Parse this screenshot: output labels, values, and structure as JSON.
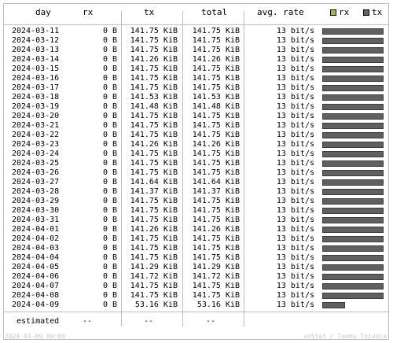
{
  "headers": {
    "day": "day",
    "rx": "rx",
    "tx": "tx",
    "total": "total",
    "rate": "avg. rate"
  },
  "legend": [
    {
      "label": "rx",
      "color": "#9cc61c"
    },
    {
      "label": "tx",
      "color": "#606060"
    }
  ],
  "rows": [
    {
      "day": "2024-03-11",
      "rx": "0 B",
      "tx": "141.75 KiB",
      "total": "141.75 KiB",
      "rate": "13 bit/s",
      "tx_frac": 1.0
    },
    {
      "day": "2024-03-12",
      "rx": "0 B",
      "tx": "141.75 KiB",
      "total": "141.75 KiB",
      "rate": "13 bit/s",
      "tx_frac": 1.0
    },
    {
      "day": "2024-03-13",
      "rx": "0 B",
      "tx": "141.75 KiB",
      "total": "141.75 KiB",
      "rate": "13 bit/s",
      "tx_frac": 1.0
    },
    {
      "day": "2024-03-14",
      "rx": "0 B",
      "tx": "141.26 KiB",
      "total": "141.26 KiB",
      "rate": "13 bit/s",
      "tx_frac": 0.997
    },
    {
      "day": "2024-03-15",
      "rx": "0 B",
      "tx": "141.75 KiB",
      "total": "141.75 KiB",
      "rate": "13 bit/s",
      "tx_frac": 1.0
    },
    {
      "day": "2024-03-16",
      "rx": "0 B",
      "tx": "141.75 KiB",
      "total": "141.75 KiB",
      "rate": "13 bit/s",
      "tx_frac": 1.0
    },
    {
      "day": "2024-03-17",
      "rx": "0 B",
      "tx": "141.75 KiB",
      "total": "141.75 KiB",
      "rate": "13 bit/s",
      "tx_frac": 1.0
    },
    {
      "day": "2024-03-18",
      "rx": "0 B",
      "tx": "141.53 KiB",
      "total": "141.53 KiB",
      "rate": "13 bit/s",
      "tx_frac": 0.998
    },
    {
      "day": "2024-03-19",
      "rx": "0 B",
      "tx": "141.48 KiB",
      "total": "141.48 KiB",
      "rate": "13 bit/s",
      "tx_frac": 0.998
    },
    {
      "day": "2024-03-20",
      "rx": "0 B",
      "tx": "141.75 KiB",
      "total": "141.75 KiB",
      "rate": "13 bit/s",
      "tx_frac": 1.0
    },
    {
      "day": "2024-03-21",
      "rx": "0 B",
      "tx": "141.75 KiB",
      "total": "141.75 KiB",
      "rate": "13 bit/s",
      "tx_frac": 1.0
    },
    {
      "day": "2024-03-22",
      "rx": "0 B",
      "tx": "141.75 KiB",
      "total": "141.75 KiB",
      "rate": "13 bit/s",
      "tx_frac": 1.0
    },
    {
      "day": "2024-03-23",
      "rx": "0 B",
      "tx": "141.26 KiB",
      "total": "141.26 KiB",
      "rate": "13 bit/s",
      "tx_frac": 0.997
    },
    {
      "day": "2024-03-24",
      "rx": "0 B",
      "tx": "141.75 KiB",
      "total": "141.75 KiB",
      "rate": "13 bit/s",
      "tx_frac": 1.0
    },
    {
      "day": "2024-03-25",
      "rx": "0 B",
      "tx": "141.75 KiB",
      "total": "141.75 KiB",
      "rate": "13 bit/s",
      "tx_frac": 1.0
    },
    {
      "day": "2024-03-26",
      "rx": "0 B",
      "tx": "141.75 KiB",
      "total": "141.75 KiB",
      "rate": "13 bit/s",
      "tx_frac": 1.0
    },
    {
      "day": "2024-03-27",
      "rx": "0 B",
      "tx": "141.64 KiB",
      "total": "141.64 KiB",
      "rate": "13 bit/s",
      "tx_frac": 0.999
    },
    {
      "day": "2024-03-28",
      "rx": "0 B",
      "tx": "141.37 KiB",
      "total": "141.37 KiB",
      "rate": "13 bit/s",
      "tx_frac": 0.997
    },
    {
      "day": "2024-03-29",
      "rx": "0 B",
      "tx": "141.75 KiB",
      "total": "141.75 KiB",
      "rate": "13 bit/s",
      "tx_frac": 1.0
    },
    {
      "day": "2024-03-30",
      "rx": "0 B",
      "tx": "141.75 KiB",
      "total": "141.75 KiB",
      "rate": "13 bit/s",
      "tx_frac": 1.0
    },
    {
      "day": "2024-03-31",
      "rx": "0 B",
      "tx": "141.75 KiB",
      "total": "141.75 KiB",
      "rate": "13 bit/s",
      "tx_frac": 1.0
    },
    {
      "day": "2024-04-01",
      "rx": "0 B",
      "tx": "141.26 KiB",
      "total": "141.26 KiB",
      "rate": "13 bit/s",
      "tx_frac": 0.997
    },
    {
      "day": "2024-04-02",
      "rx": "0 B",
      "tx": "141.75 KiB",
      "total": "141.75 KiB",
      "rate": "13 bit/s",
      "tx_frac": 1.0
    },
    {
      "day": "2024-04-03",
      "rx": "0 B",
      "tx": "141.75 KiB",
      "total": "141.75 KiB",
      "rate": "13 bit/s",
      "tx_frac": 1.0
    },
    {
      "day": "2024-04-04",
      "rx": "0 B",
      "tx": "141.75 KiB",
      "total": "141.75 KiB",
      "rate": "13 bit/s",
      "tx_frac": 1.0
    },
    {
      "day": "2024-04-05",
      "rx": "0 B",
      "tx": "141.29 KiB",
      "total": "141.29 KiB",
      "rate": "13 bit/s",
      "tx_frac": 0.997
    },
    {
      "day": "2024-04-06",
      "rx": "0 B",
      "tx": "141.72 KiB",
      "total": "141.72 KiB",
      "rate": "13 bit/s",
      "tx_frac": 1.0
    },
    {
      "day": "2024-04-07",
      "rx": "0 B",
      "tx": "141.75 KiB",
      "total": "141.75 KiB",
      "rate": "13 bit/s",
      "tx_frac": 1.0
    },
    {
      "day": "2024-04-08",
      "rx": "0 B",
      "tx": "141.75 KiB",
      "total": "141.75 KiB",
      "rate": "13 bit/s",
      "tx_frac": 1.0
    },
    {
      "day": "2024-04-09",
      "rx": "0 B",
      "tx": "53.16 KiB",
      "total": "53.16 KiB",
      "rate": "13 bit/s",
      "tx_frac": 0.375
    }
  ],
  "estimated": {
    "label": "estimated",
    "rx": "--",
    "tx": "--",
    "total": "--"
  },
  "footer": {
    "left": "2024-04-09 09:00",
    "right": "vnStat / Teemu Toivola"
  }
}
